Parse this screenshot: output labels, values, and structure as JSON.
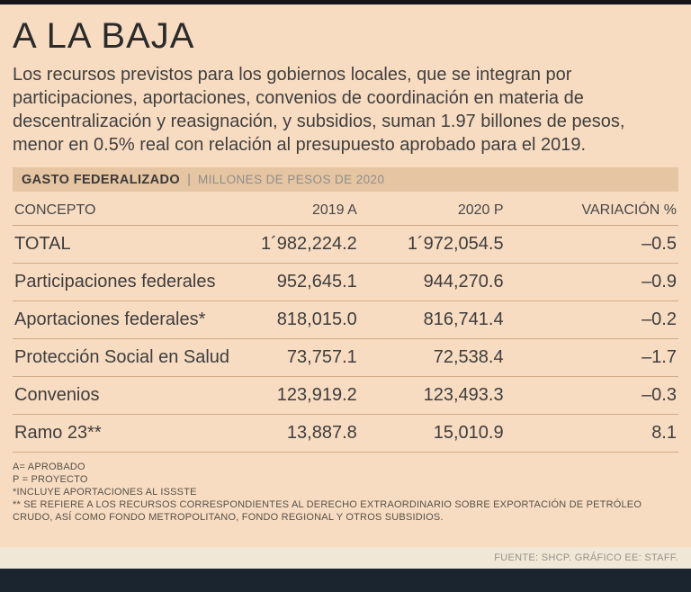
{
  "meta": {
    "background_color": "#f8dcc2",
    "section_bar_color": "#e6c5a2",
    "top_bar_color": "#15151b",
    "bottom_bar_color": "#1a2530",
    "rule_color": "#cfab87",
    "text_color": "#3d3d3d"
  },
  "header": {
    "title": "A LA BAJA",
    "intro": "Los recursos previstos para los gobiernos locales, que se integran por participaciones, aportaciones, convenios de coordinación en materia de descentralización y reasignación, y subsidios, suman 1.97 billones de pesos, menor en 0.5% real con relación al presupuesto aprobado para el 2019."
  },
  "section_bar": {
    "label": "GASTO FEDERALIZADO",
    "separator": "|",
    "units": "MILLONES DE PESOS DE 2020"
  },
  "chart_data": {
    "type": "table",
    "title": "GASTO FEDERALIZADO",
    "subtitle": "MILLONES DE PESOS DE 2020",
    "columns": [
      "CONCEPTO",
      "2019 A",
      "2020 P",
      "VARIACIÓN %"
    ],
    "rows": [
      [
        "TOTAL",
        "1´982,224.2",
        "1´972,054.5",
        "–0.5"
      ],
      [
        "Participaciones federales",
        "952,645.1",
        "944,270.6",
        "–0.9"
      ],
      [
        "Aportaciones federales*",
        "818,015.0",
        "816,741.4",
        "–0.2"
      ],
      [
        "Protección Social en Salud",
        "73,757.1",
        "72,538.4",
        "–1.7"
      ],
      [
        "Convenios",
        "123,919.2",
        "123,493.3",
        "–0.3"
      ],
      [
        "Ramo 23**",
        "13,887.8",
        "15,010.9",
        "8.1"
      ]
    ]
  },
  "footnotes": [
    "A= APROBADO",
    "P = PROYECTO",
    "*INCLUYE APORTACIONES AL ISSSTE",
    "** SE REFIERE A LOS RECURSOS CORRESPONDIENTES AL DERECHO EXTRAORDINARIO SOBRE EXPORTACIÓN DE PETRÓLEO CRUDO, ASÍ COMO FONDO METROPOLITANO, FONDO REGIONAL Y OTROS SUBSIDIOS."
  ],
  "source": "FUENTE: SHCP. GRÁFICO EE: STAFF."
}
